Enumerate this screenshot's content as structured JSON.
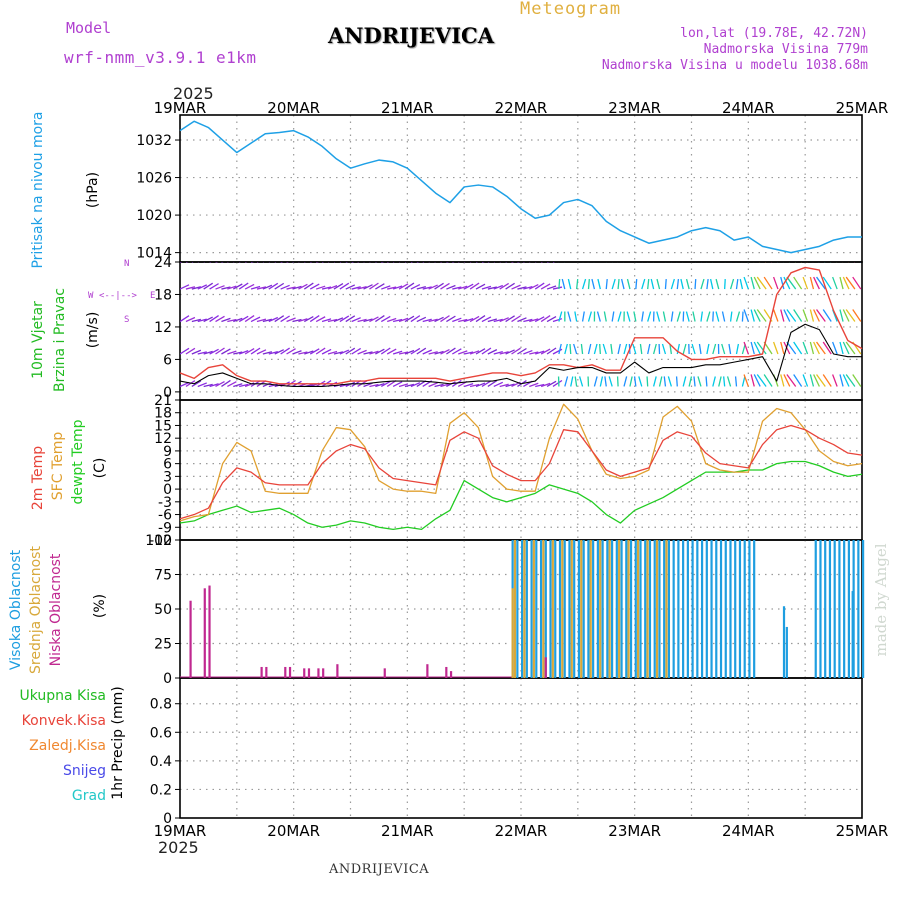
{
  "header": {
    "model_label": "Model",
    "model_name": "wrf-nmm_v3.9.1 e1km",
    "location": "ANDRIJEVICA",
    "product": "Meteogram",
    "lonlat": "lon,lat (19.78E, 42.72N)",
    "elevation": "Nadmorska Visina 779m",
    "model_elevation": "Nadmorska Visina u modelu 1038.68m",
    "year_top": "2025",
    "year_bottom": "2025",
    "footer": "ANDRIJEVICA",
    "credit": "made by Angel"
  },
  "colors": {
    "pressure": "#1ea0e6",
    "wind_speed_title": "#22bb22",
    "wind_dir_title": "#22bb22",
    "temp_2m": "#e8443a",
    "temp_sfc": "#e0a030",
    "dewpt": "#22cc22",
    "cloud_high": "#1e9ee0",
    "cloud_mid": "#d8a83a",
    "cloud_low": "#c02890",
    "precip_total": "#22bb22",
    "precip_conv": "#e8443a",
    "precip_frz": "#f08830",
    "precip_snow": "#4a4ae8",
    "precip_hail": "#22c8c8",
    "title_purple": "#b040d0",
    "meteogram_title": "#e0b040"
  },
  "chart_data": [
    {
      "type": "line",
      "panel": "pressure",
      "ylabel": "(hPa)",
      "title": "Pritisak na nivou mora",
      "x_labels": [
        "19MAR",
        "20MAR",
        "21MAR",
        "22MAR",
        "23MAR",
        "24MAR",
        "25MAR"
      ],
      "y_ticks": [
        1014,
        1020,
        1026,
        1032
      ],
      "ylim": [
        1012.5,
        1036
      ],
      "x_hours": [
        0,
        3,
        6,
        9,
        12,
        15,
        18,
        21,
        24,
        27,
        30,
        33,
        36,
        39,
        42,
        45,
        48,
        51,
        54,
        57,
        60,
        63,
        66,
        69,
        72,
        75,
        78,
        81,
        84,
        87,
        90,
        93,
        96,
        99,
        102,
        105,
        108,
        111,
        114,
        117,
        120,
        123,
        126,
        129,
        132,
        135,
        138,
        141,
        144
      ],
      "series": [
        {
          "values": [
            1033.5,
            1035.0,
            1034.0,
            1032.0,
            1030.0,
            1031.5,
            1033.0,
            1033.2,
            1033.5,
            1032.5,
            1031.0,
            1029.0,
            1027.5,
            1028.2,
            1028.8,
            1028.5,
            1027.5,
            1025.5,
            1023.5,
            1022.0,
            1024.5,
            1024.8,
            1024.5,
            1023.0,
            1021.0,
            1019.5,
            1020.0,
            1022.0,
            1022.5,
            1021.5,
            1019.0,
            1017.5,
            1016.5,
            1015.5,
            1016.0,
            1016.5,
            1017.5,
            1018.0,
            1017.5,
            1016.0,
            1016.5,
            1015.0,
            1014.5,
            1014.0,
            1014.5,
            1015.0,
            1016.0,
            1016.5,
            1016.5
          ]
        }
      ]
    },
    {
      "type": "line",
      "panel": "wind",
      "ylabel": "(m/s)",
      "title_lines": [
        "10m Vjetar",
        "Brzina i Pravac"
      ],
      "compass": [
        "W",
        "<--|-->",
        "E",
        "N",
        "S"
      ],
      "y_ticks": [
        0,
        6,
        12,
        18,
        24
      ],
      "ylim": [
        -1.5,
        24
      ],
      "x_hours": [
        0,
        3,
        6,
        9,
        12,
        15,
        18,
        21,
        24,
        27,
        30,
        33,
        36,
        39,
        42,
        45,
        48,
        51,
        54,
        57,
        60,
        63,
        66,
        69,
        72,
        75,
        78,
        81,
        84,
        87,
        90,
        93,
        96,
        99,
        102,
        105,
        108,
        111,
        114,
        117,
        120,
        123,
        126,
        129,
        132,
        135,
        138,
        141,
        144
      ],
      "series": [
        {
          "name": "speed",
          "values": [
            2.0,
            1.5,
            3.0,
            3.5,
            2.5,
            1.5,
            1.5,
            1.2,
            1.0,
            1.0,
            1.0,
            1.2,
            1.5,
            1.5,
            1.8,
            2.0,
            2.0,
            2.0,
            1.8,
            1.5,
            1.8,
            2.0,
            2.0,
            2.5,
            1.5,
            2.0,
            4.5,
            4.0,
            4.5,
            4.5,
            3.5,
            3.5,
            5.5,
            3.5,
            4.5,
            4.5,
            4.5,
            5.0,
            5.0,
            5.5,
            6.0,
            6.5,
            2.0,
            11.0,
            12.5,
            11.5,
            7.0,
            6.5,
            6.5
          ]
        },
        {
          "name": "gust",
          "values": [
            3.5,
            2.5,
            4.5,
            5.0,
            3.0,
            2.0,
            2.0,
            1.5,
            1.5,
            1.5,
            1.5,
            1.5,
            2.0,
            2.0,
            2.5,
            2.5,
            2.5,
            2.5,
            2.5,
            2.0,
            2.5,
            3.0,
            3.5,
            3.5,
            3.0,
            3.5,
            5.0,
            5.0,
            4.5,
            5.0,
            4.0,
            4.0,
            10.0,
            10.0,
            10.0,
            7.5,
            6.0,
            6.0,
            6.5,
            6.5,
            6.5,
            7.0,
            18.0,
            22.0,
            23.0,
            22.5,
            15.0,
            9.5,
            8.0
          ]
        }
      ]
    },
    {
      "type": "line",
      "panel": "temperature",
      "ylabel": "(C)",
      "title_lines": [
        "2m Temp",
        "SFC Temp",
        "dewpt Temp"
      ],
      "y_ticks": [
        -12,
        -9,
        -6,
        -3,
        0,
        3,
        6,
        9,
        12,
        15,
        18,
        21
      ],
      "ylim": [
        -12,
        21
      ],
      "x_hours": [
        0,
        3,
        6,
        9,
        12,
        15,
        18,
        21,
        24,
        27,
        30,
        33,
        36,
        39,
        42,
        45,
        48,
        51,
        54,
        57,
        60,
        63,
        66,
        69,
        72,
        75,
        78,
        81,
        84,
        87,
        90,
        93,
        96,
        99,
        102,
        105,
        108,
        111,
        114,
        117,
        120,
        123,
        126,
        129,
        132,
        135,
        138,
        141,
        144
      ],
      "series": [
        {
          "name": "2m Temp",
          "values": [
            -7.0,
            -6.0,
            -4.5,
            1.5,
            5.0,
            4.0,
            1.5,
            1.0,
            1.0,
            1.0,
            6.0,
            9.0,
            10.5,
            9.5,
            5.0,
            2.5,
            2.0,
            1.5,
            1.0,
            11.5,
            13.5,
            12.0,
            5.5,
            3.5,
            2.0,
            2.0,
            6.0,
            14.0,
            13.5,
            9.0,
            4.5,
            3.0,
            4.0,
            5.0,
            11.5,
            13.5,
            12.5,
            8.5,
            6.0,
            5.5,
            5.0,
            10.5,
            14.0,
            15.0,
            14.0,
            12.0,
            10.5,
            8.5,
            8.0
          ]
        },
        {
          "name": "SFC Temp",
          "values": [
            -7.5,
            -6.5,
            -6.0,
            6.0,
            11.0,
            9.0,
            -0.5,
            -1.0,
            -1.0,
            -1.0,
            9.0,
            14.5,
            14.0,
            10.0,
            2.0,
            0.0,
            -0.5,
            -0.5,
            -1.0,
            15.5,
            18.0,
            14.5,
            3.0,
            0.0,
            -0.5,
            -0.5,
            12.0,
            20.0,
            16.5,
            9.0,
            3.5,
            2.5,
            3.0,
            4.5,
            17.0,
            19.5,
            16.0,
            6.0,
            4.5,
            4.0,
            4.0,
            16.0,
            19.0,
            18.0,
            14.0,
            9.0,
            6.5,
            5.5,
            6.0
          ]
        },
        {
          "name": "dewpt Temp",
          "values": [
            -8.0,
            -7.5,
            -6.0,
            -5.0,
            -4.0,
            -5.5,
            -5.0,
            -4.5,
            -6.0,
            -8.0,
            -9.0,
            -8.5,
            -7.5,
            -8.0,
            -9.0,
            -9.5,
            -9.0,
            -9.5,
            -7.0,
            -5.0,
            2.0,
            0.0,
            -2.0,
            -3.0,
            -2.0,
            -1.0,
            1.0,
            0.0,
            -1.0,
            -3.0,
            -6.0,
            -8.0,
            -5.0,
            -3.5,
            -2.0,
            0.0,
            2.0,
            4.0,
            4.0,
            4.0,
            4.5,
            4.5,
            6.0,
            6.5,
            6.5,
            5.5,
            4.0,
            3.0,
            3.5
          ]
        }
      ]
    },
    {
      "type": "bar",
      "panel": "cloud",
      "ylabel": "(%)",
      "title_lines": [
        "Visoka Oblacnost",
        "Srednja Oblacnost",
        "Niska Oblacnost"
      ],
      "y_ticks": [
        0,
        25,
        50,
        75,
        100
      ],
      "ylim": [
        0,
        100
      ],
      "series": [
        {
          "name": "Visoka Oblacnost",
          "segments": [
            {
              "from_hour": 70.0,
              "to_hour": 121.0,
              "value": 100
            },
            {
              "from_hour": 134.0,
              "to_hour": 144.0,
              "value": 100
            }
          ],
          "extra_bars": [
            {
              "hour": 127.3,
              "value": 52
            },
            {
              "hour": 127.9,
              "value": 37
            },
            {
              "hour": 141.8,
              "value": 63
            }
          ]
        },
        {
          "name": "Srednja Oblacnost",
          "segments": [
            {
              "from_hour": 70.0,
              "to_hour": 103.0,
              "value": 100
            }
          ],
          "extra_bars": [
            {
              "hour": 70.0,
              "value": 65
            }
          ]
        },
        {
          "name": "Niska Oblacnost",
          "bars": [
            {
              "hour": 2.0,
              "value": 56
            },
            {
              "hour": 5.0,
              "value": 65
            },
            {
              "hour": 6.0,
              "value": 67
            },
            {
              "hour": 17.0,
              "value": 8
            },
            {
              "hour": 18.0,
              "value": 8
            },
            {
              "hour": 22.0,
              "value": 8
            },
            {
              "hour": 23.0,
              "value": 8
            },
            {
              "hour": 26.0,
              "value": 7
            },
            {
              "hour": 27.0,
              "value": 7
            },
            {
              "hour": 29.0,
              "value": 7
            },
            {
              "hour": 30.0,
              "value": 7
            },
            {
              "hour": 33.0,
              "value": 10
            },
            {
              "hour": 43.0,
              "value": 7
            },
            {
              "hour": 52.0,
              "value": 10
            },
            {
              "hour": 56.0,
              "value": 8
            },
            {
              "hour": 57.0,
              "value": 5
            },
            {
              "hour": 77.0,
              "value": 15
            }
          ]
        }
      ]
    },
    {
      "type": "bar",
      "panel": "precip",
      "ylabel": "1hr Precip (mm)",
      "legend": [
        "Ukupna Kisa",
        "Konvek.Kisa",
        "Zaledj.Kisa",
        "Snijeg",
        "Grad"
      ],
      "y_ticks": [
        0,
        0.2,
        0.4,
        0.6,
        0.8
      ],
      "y_tick_labels": [
        "0",
        "0.2",
        "0.4",
        "0.6",
        "0.8"
      ],
      "ylim": [
        0,
        0.98
      ],
      "series": []
    }
  ]
}
